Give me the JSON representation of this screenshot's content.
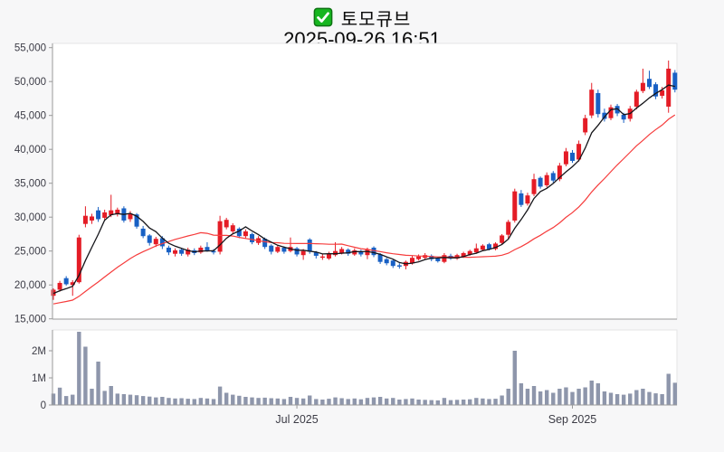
{
  "title": {
    "stock_name": "토모큐브",
    "datetime": "2025-09-26 16:51",
    "icon": "green-check-icon"
  },
  "chart_data": {
    "type": "candlestick",
    "subpanels": [
      "price",
      "volume"
    ],
    "grid": false,
    "legend_position": "none",
    "price_axis": {
      "min": 15000,
      "max": 55000,
      "ticks": [
        {
          "label": "15,000",
          "value": 15000
        },
        {
          "label": "20,000",
          "value": 20000
        },
        {
          "label": "25,000",
          "value": 25000
        },
        {
          "label": "30,000",
          "value": 30000
        },
        {
          "label": "35,000",
          "value": 35000
        },
        {
          "label": "40,000",
          "value": 40000
        },
        {
          "label": "45,000",
          "value": 45000
        },
        {
          "label": "50,000",
          "value": 50000
        },
        {
          "label": "55,000",
          "value": 55000
        }
      ]
    },
    "volume_axis": {
      "ticks": [
        {
          "label": "0",
          "value": 0
        },
        {
          "label": "1M",
          "value": 1000000
        },
        {
          "label": "2M",
          "value": 2000000
        }
      ]
    },
    "x_axis": {
      "ticks": [
        {
          "label": "Jul 2025",
          "index": 38
        },
        {
          "label": "Sep 2025",
          "index": 81
        }
      ]
    },
    "colors": {
      "up": "#e41c26",
      "down": "#1860c4",
      "volume": "#8e96ab",
      "ma_short": "#15151a",
      "ma_long": "#f63c3c",
      "axis": "#9a9a9a",
      "panel_border": "#e4e4e6",
      "label": "#3c3c46"
    },
    "ma": {
      "short_window": 5,
      "long_window": 20,
      "warmup_closes": [
        17000,
        16800,
        16500,
        16300,
        16000,
        15800,
        15700,
        15900,
        16200,
        16500,
        16800,
        17000,
        17300,
        17600,
        17900,
        18100,
        18300,
        18500,
        18700,
        18900
      ]
    },
    "candles": [
      [
        18400,
        19500,
        17800,
        19300,
        420000
      ],
      [
        19300,
        20600,
        19000,
        20300,
        640000
      ],
      [
        21000,
        21300,
        19900,
        20100,
        330000
      ],
      [
        20000,
        20700,
        18400,
        20400,
        380000
      ],
      [
        20400,
        27400,
        20200,
        27000,
        2700000
      ],
      [
        29000,
        31600,
        28500,
        30200,
        2150000
      ],
      [
        29500,
        30500,
        29000,
        30100,
        600000
      ],
      [
        31000,
        31500,
        29300,
        29700,
        1600000
      ],
      [
        29900,
        31100,
        29500,
        30700,
        520000
      ],
      [
        30300,
        33300,
        30000,
        31000,
        700000
      ],
      [
        30500,
        31400,
        30100,
        31100,
        420000
      ],
      [
        31300,
        31600,
        29200,
        29500,
        400000
      ],
      [
        29700,
        30900,
        29300,
        30500,
        380000
      ],
      [
        30400,
        30600,
        28300,
        28600,
        360000
      ],
      [
        28300,
        28700,
        26900,
        27200,
        330000
      ],
      [
        27300,
        27500,
        25800,
        26200,
        310000
      ],
      [
        26000,
        27100,
        25600,
        26800,
        280000
      ],
      [
        26900,
        27200,
        25300,
        25700,
        300000
      ],
      [
        25500,
        25800,
        24400,
        24800,
        260000
      ],
      [
        24600,
        25400,
        24200,
        25100,
        240000
      ],
      [
        25200,
        25500,
        24300,
        24600,
        250000
      ],
      [
        24500,
        25500,
        24200,
        25200,
        230000
      ],
      [
        25100,
        25400,
        24400,
        24700,
        220000
      ],
      [
        24800,
        25800,
        24600,
        25500,
        260000
      ],
      [
        25600,
        26300,
        24900,
        25100,
        240000
      ],
      [
        25000,
        25300,
        24500,
        24800,
        220000
      ],
      [
        24900,
        30200,
        24500,
        29400,
        680000
      ],
      [
        28500,
        29900,
        28200,
        29600,
        450000
      ],
      [
        27900,
        29100,
        27600,
        28800,
        380000
      ],
      [
        28300,
        28500,
        26900,
        27200,
        340000
      ],
      [
        27200,
        28200,
        26900,
        27900,
        300000
      ],
      [
        27500,
        27700,
        26000,
        26300,
        280000
      ],
      [
        26200,
        27200,
        25900,
        26900,
        260000
      ],
      [
        26800,
        27000,
        25300,
        25600,
        270000
      ],
      [
        25800,
        26000,
        24500,
        24900,
        250000
      ],
      [
        24900,
        25900,
        24700,
        25600,
        240000
      ],
      [
        25500,
        25700,
        24600,
        24900,
        220000
      ],
      [
        25000,
        27000,
        24800,
        25600,
        300000
      ],
      [
        25400,
        25600,
        24200,
        24500,
        260000
      ],
      [
        24400,
        25300,
        23700,
        25000,
        240000
      ],
      [
        26700,
        26900,
        24600,
        24900,
        350000
      ],
      [
        24800,
        25000,
        23900,
        24300,
        220000
      ],
      [
        24100,
        24600,
        23700,
        24200,
        200000
      ],
      [
        23900,
        24900,
        23700,
        24600,
        230000
      ],
      [
        24400,
        26300,
        24200,
        25000,
        280000
      ],
      [
        24700,
        25600,
        24500,
        25300,
        250000
      ],
      [
        25200,
        25400,
        24300,
        24600,
        220000
      ],
      [
        24500,
        25400,
        24300,
        25100,
        240000
      ],
      [
        25000,
        25200,
        24200,
        24500,
        210000
      ],
      [
        24400,
        25500,
        23800,
        25200,
        260000
      ],
      [
        25500,
        25700,
        24100,
        24400,
        280000
      ],
      [
        24500,
        24700,
        23100,
        23400,
        300000
      ],
      [
        23800,
        24000,
        22900,
        23200,
        240000
      ],
      [
        23600,
        23800,
        22500,
        22800,
        260000
      ],
      [
        22900,
        23200,
        22400,
        22700,
        200000
      ],
      [
        22800,
        23600,
        22300,
        23400,
        220000
      ],
      [
        23200,
        24300,
        23000,
        24000,
        240000
      ],
      [
        23800,
        24500,
        23600,
        24200,
        200000
      ],
      [
        24000,
        24700,
        23800,
        24400,
        190000
      ],
      [
        24300,
        24500,
        23500,
        23800,
        180000
      ],
      [
        23900,
        24100,
        23300,
        23500,
        170000
      ],
      [
        23400,
        24700,
        23200,
        24400,
        260000
      ],
      [
        24300,
        24600,
        23700,
        23900,
        180000
      ],
      [
        23900,
        24600,
        23700,
        24400,
        190000
      ],
      [
        24200,
        24900,
        24000,
        24700,
        200000
      ],
      [
        24500,
        25200,
        24300,
        25000,
        210000
      ],
      [
        24800,
        26100,
        24600,
        25400,
        260000
      ],
      [
        25200,
        26000,
        25000,
        25800,
        240000
      ],
      [
        26000,
        26200,
        25100,
        25300,
        220000
      ],
      [
        25300,
        26300,
        25100,
        26100,
        230000
      ],
      [
        26200,
        27500,
        26000,
        27300,
        350000
      ],
      [
        27400,
        29600,
        26700,
        29300,
        600000
      ],
      [
        29500,
        34200,
        29200,
        33800,
        2000000
      ],
      [
        33500,
        34000,
        31500,
        31800,
        800000
      ],
      [
        32000,
        33600,
        31700,
        33200,
        600000
      ],
      [
        33400,
        36400,
        33100,
        35600,
        700000
      ],
      [
        35800,
        36000,
        34200,
        34500,
        500000
      ],
      [
        34700,
        36600,
        34400,
        36200,
        550000
      ],
      [
        36500,
        36800,
        35100,
        35400,
        450000
      ],
      [
        35600,
        38000,
        35300,
        37600,
        600000
      ],
      [
        37800,
        40200,
        37500,
        39700,
        650000
      ],
      [
        39500,
        39900,
        38000,
        38300,
        480000
      ],
      [
        38500,
        41300,
        38200,
        40800,
        600000
      ],
      [
        42500,
        45100,
        42100,
        44600,
        650000
      ],
      [
        45000,
        49800,
        44600,
        48800,
        900000
      ],
      [
        48300,
        48800,
        44700,
        45200,
        800000
      ],
      [
        45400,
        46000,
        44100,
        44500,
        500000
      ],
      [
        44600,
        46600,
        44300,
        46200,
        450000
      ],
      [
        46400,
        46700,
        44900,
        45300,
        400000
      ],
      [
        45100,
        45400,
        43900,
        44400,
        380000
      ],
      [
        44500,
        46400,
        44100,
        46000,
        420000
      ],
      [
        46300,
        48800,
        45900,
        48500,
        550000
      ],
      [
        48600,
        51900,
        48300,
        49800,
        600000
      ],
      [
        50400,
        51600,
        48900,
        49200,
        480000
      ],
      [
        49600,
        49900,
        47400,
        47800,
        430000
      ],
      [
        47900,
        49200,
        47500,
        48700,
        400000
      ],
      [
        46300,
        53100,
        45400,
        51900,
        1150000
      ],
      [
        51300,
        51700,
        48400,
        48800,
        820000
      ]
    ]
  }
}
